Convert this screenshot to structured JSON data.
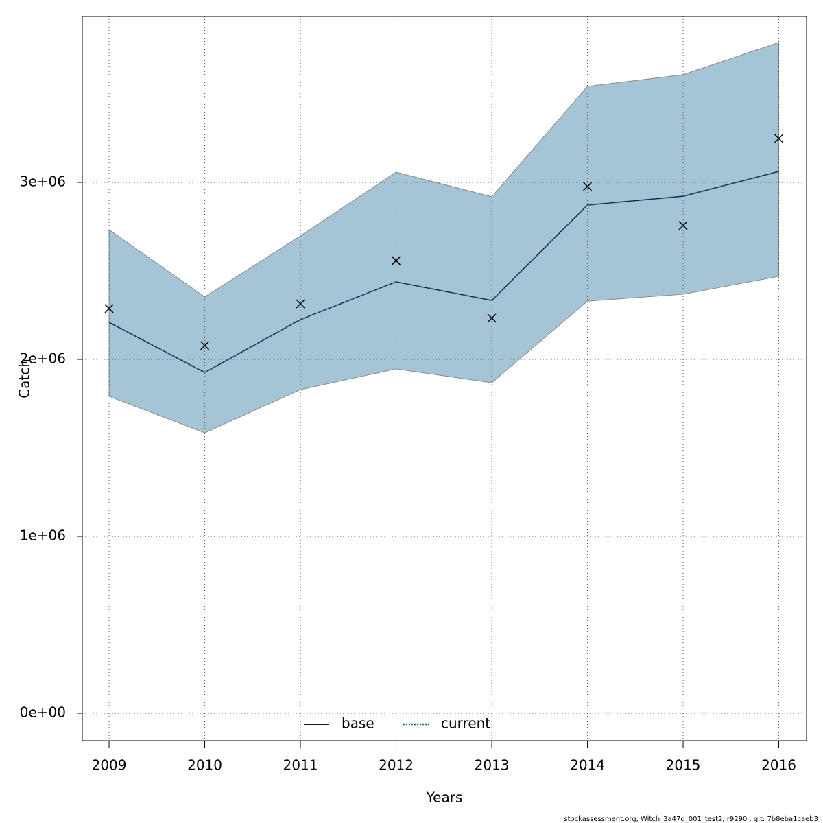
{
  "chart_data": {
    "type": "line",
    "x": [
      2009,
      2010,
      2011,
      2012,
      2013,
      2014,
      2015,
      2016
    ],
    "xlabel": "Years",
    "ylabel": "Catch",
    "xlim": [
      2008.72,
      2016.29
    ],
    "xticks": [
      2009,
      2010,
      2011,
      2012,
      2013,
      2014,
      2015,
      2016
    ],
    "ylim": [
      -155000,
      3938000
    ],
    "yticks": [
      {
        "value": 0,
        "label": "0e+00"
      },
      {
        "value": 1000000,
        "label": "1e+06"
      },
      {
        "value": 2000000,
        "label": "2e+06"
      },
      {
        "value": 3000000,
        "label": "3e+06"
      }
    ],
    "grid": true,
    "series": [
      {
        "name": "base",
        "color": "#000000",
        "values": [
          2209000,
          1926000,
          2225000,
          2438000,
          2333000,
          2872000,
          2922000,
          3062000
        ]
      },
      {
        "name": "current",
        "color": "#1f5f8b",
        "values": [
          2209000,
          1926000,
          2225000,
          2438000,
          2333000,
          2872000,
          2922000,
          3062000
        ],
        "lower": [
          1791000,
          1585000,
          1829000,
          1946000,
          1868000,
          2329000,
          2368000,
          2469000
        ],
        "upper": [
          2733000,
          2353000,
          2698000,
          3058000,
          2919000,
          3543000,
          3609000,
          3791000
        ],
        "band_color": "#a5c4d5"
      }
    ],
    "observations": [
      2287000,
      2078000,
      2314000,
      2558000,
      2233000,
      2977000,
      2756000,
      3248000
    ],
    "legend": "bottom",
    "footnote": "stockassessment.org, Witch_3a47d_001_test2, r9290 , git: 7b8eba1caeb3"
  }
}
